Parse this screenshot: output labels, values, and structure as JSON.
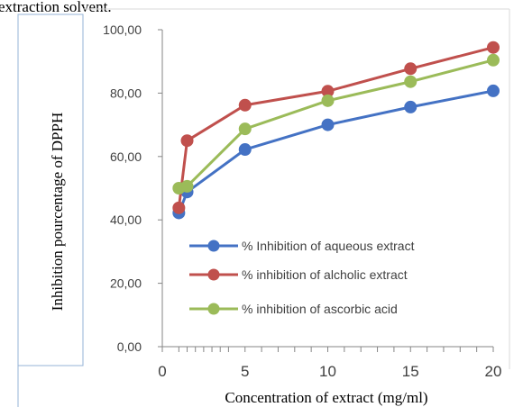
{
  "caption_fragment": "extraction solvent.",
  "chart_data": {
    "type": "line",
    "xlabel": "Concentration of extract (mg/ml)",
    "ylabel": "Inhibition pourcentage of DPPH",
    "xlim": [
      0,
      20
    ],
    "ylim": [
      0,
      100
    ],
    "x_ticks": [
      "0",
      "5",
      "10",
      "15",
      "20"
    ],
    "y_ticks": [
      "0,00",
      "20,00",
      "40,00",
      "60,00",
      "80,00",
      "100,00"
    ],
    "x_minor_ticks": [
      1,
      1.5,
      2,
      2.5,
      3,
      3.5,
      4,
      6,
      7,
      8,
      9,
      11,
      12,
      13,
      14,
      16,
      17,
      18,
      19
    ],
    "legend_position": "lower-right",
    "grid": false,
    "series": [
      {
        "name": "% Inhibition of aqueous extract",
        "color": "#4472C4",
        "x": [
          1,
          1.5,
          5,
          10,
          15,
          20
        ],
        "values": [
          42.2,
          48.8,
          62.2,
          70.0,
          75.6,
          80.7
        ]
      },
      {
        "name": "% inhibition of alcholic extract",
        "color": "#C0504D",
        "x": [
          1,
          1.5,
          5,
          10,
          15,
          20
        ],
        "values": [
          43.8,
          65.0,
          76.2,
          80.6,
          87.7,
          94.4
        ]
      },
      {
        "name": "% inhibition of ascorbic acid",
        "color": "#9BBB59",
        "x": [
          1,
          1.5,
          5,
          10,
          15,
          20
        ],
        "values": [
          50.0,
          50.6,
          68.7,
          77.6,
          83.6,
          90.4
        ]
      }
    ]
  }
}
